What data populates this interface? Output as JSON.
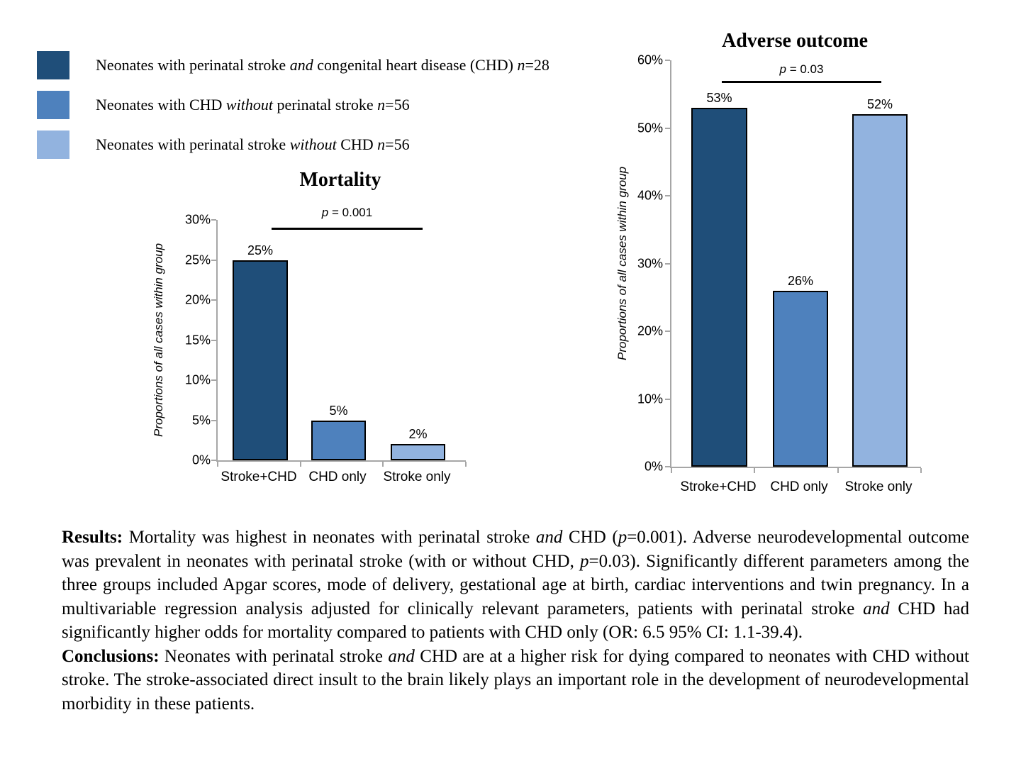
{
  "colors": {
    "background": "#FFFFFF",
    "dark_blue": "#1F4E79",
    "mid_blue": "#4E81BD",
    "light_blue": "#92B3DF",
    "axis_gray": "#A6A6A6",
    "bar_outline": "#000000",
    "significance_line": "#000000",
    "text": "#000000"
  },
  "legend": {
    "items": [
      {
        "swatch_color": "#1F4E79",
        "segments": [
          {
            "t": "Neonates with perinatal stroke "
          },
          {
            "t": "and",
            "i": true
          },
          {
            "t": " congenital heart disease (CHD) "
          },
          {
            "t": "n",
            "i": true
          },
          {
            "t": "=28"
          }
        ]
      },
      {
        "swatch_color": "#4E81BD",
        "segments": [
          {
            "t": "Neonates with CHD "
          },
          {
            "t": "without",
            "i": true
          },
          {
            "t": " perinatal stroke "
          },
          {
            "t": "n",
            "i": true
          },
          {
            "t": "=56"
          }
        ]
      },
      {
        "swatch_color": "#92B3DF",
        "segments": [
          {
            "t": "Neonates with perinatal stroke "
          },
          {
            "t": "without",
            "i": true
          },
          {
            "t": " CHD "
          },
          {
            "t": "n",
            "i": true
          },
          {
            "t": "=56"
          }
        ]
      }
    ]
  },
  "chart_data": [
    {
      "type": "bar",
      "title": "Mortality",
      "ylabel": "Proportions of all cases within group",
      "xlabel": "",
      "categories": [
        "Stroke+CHD",
        "CHD only",
        "Stroke only"
      ],
      "values": [
        25,
        5,
        2
      ],
      "value_labels": [
        "25%",
        "5%",
        "2%"
      ],
      "yticks": [
        "30%",
        "25%",
        "20%",
        "15%",
        "10%",
        "5%",
        "0%"
      ],
      "ylim": [
        0,
        30
      ],
      "grid": false,
      "legend_position": "none",
      "bar_colors": [
        "#1F4E79",
        "#4E81BD",
        "#92B3DF"
      ],
      "p_value_segments": [
        {
          "t": "p",
          "i": true
        },
        {
          "t": " = 0.001"
        }
      ]
    },
    {
      "type": "bar",
      "title": "Adverse outcome",
      "ylabel": "Proportions of all cases within group",
      "xlabel": "",
      "categories": [
        "Stroke+CHD",
        "CHD only",
        "Stroke only"
      ],
      "values": [
        53,
        26,
        52
      ],
      "value_labels": [
        "53%",
        "26%",
        "52%"
      ],
      "yticks": [
        "60%",
        "50%",
        "40%",
        "30%",
        "20%",
        "10%",
        "0%"
      ],
      "ylim": [
        0,
        60
      ],
      "grid": false,
      "legend_position": "none",
      "bar_colors": [
        "#1F4E79",
        "#4E81BD",
        "#92B3DF"
      ],
      "p_value_segments": [
        {
          "t": "p",
          "i": true
        },
        {
          "t": " = 0.03"
        }
      ]
    }
  ],
  "results_segments": [
    {
      "t": "Results:",
      "b": true
    },
    {
      "t": " Mortality was highest in neonates with perinatal stroke "
    },
    {
      "t": "and",
      "i": true
    },
    {
      "t": " CHD ("
    },
    {
      "t": "p",
      "i": true
    },
    {
      "t": "=0.001). Adverse neurodevelopmental outcome was prevalent in neonates with perinatal stroke (with or without CHD, "
    },
    {
      "t": "p",
      "i": true
    },
    {
      "t": "=0.03). Significantly different parameters among the three groups included Apgar scores, mode of delivery, gestational age at birth, cardiac interventions and twin pregnancy. In a multivariable regression analysis adjusted for clinically relevant parameters, patients with perinatal stroke "
    },
    {
      "t": "and",
      "i": true
    },
    {
      "t": " CHD had significantly higher odds for mortality compared to patients with CHD only (OR: 6.5 95% CI: 1.1-39.4)."
    }
  ],
  "conclusions_segments": [
    {
      "t": "Conclusions:",
      "b": true
    },
    {
      "t": " Neonates with perinatal stroke "
    },
    {
      "t": "and",
      "i": true
    },
    {
      "t": " CHD are at a higher risk for dying compared to neonates with CHD without stroke. The stroke-associated direct insult to the brain likely plays an important role in the development of neurodevelopmental morbidity in these patients."
    }
  ]
}
